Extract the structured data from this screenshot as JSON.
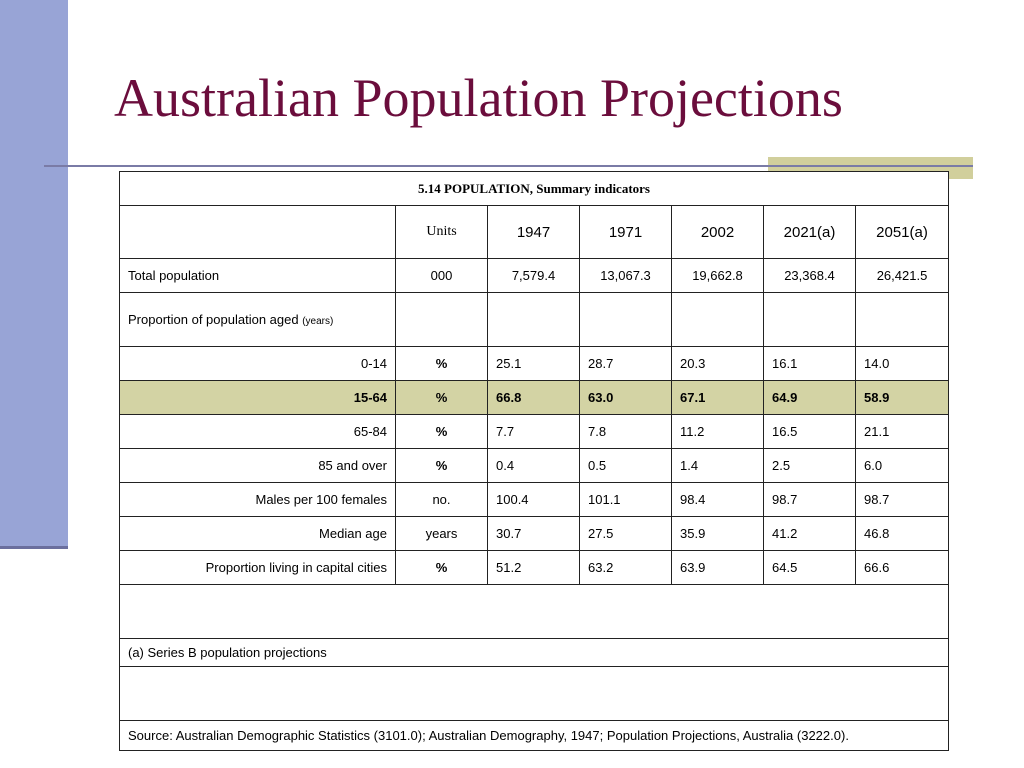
{
  "slide": {
    "title": "Australian Population Projections"
  },
  "table": {
    "caption": "5.14 POPULATION, Summary indicators",
    "header": {
      "units": "Units",
      "years": [
        "1947",
        "1971",
        "2002",
        "2021(a)",
        "2051(a)"
      ]
    },
    "total_row": {
      "label": "Total population",
      "unit": "000",
      "values": [
        "7,579.4",
        "13,067.3",
        "19,662.8",
        "23,368.4",
        "26,421.5"
      ]
    },
    "proportion_heading": {
      "label": "Proportion of population aged",
      "sub": "(years)"
    },
    "rows": [
      {
        "label": "0-14",
        "unit": "%",
        "values": [
          "25.1",
          "28.7",
          "20.3",
          "16.1",
          "14.0"
        ]
      },
      {
        "label": "15-64",
        "unit": "%",
        "values": [
          "66.8",
          "63.0",
          "67.1",
          "64.9",
          "58.9"
        ]
      },
      {
        "label": "65-84",
        "unit": "%",
        "values": [
          "7.7",
          "7.8",
          "11.2",
          "16.5",
          "21.1"
        ]
      },
      {
        "label": "85 and over",
        "unit": "%",
        "values": [
          "0.4",
          "0.5",
          "1.4",
          "2.5",
          "6.0"
        ]
      },
      {
        "label": "Males per 100 females",
        "unit": "no.",
        "values": [
          "100.4",
          "101.1",
          "98.4",
          "98.7",
          "98.7"
        ]
      },
      {
        "label": "Median age",
        "unit": "years",
        "values": [
          "30.7",
          "27.5",
          "35.9",
          "41.2",
          "46.8"
        ]
      },
      {
        "label": "Proportion living in capital cities",
        "unit": "%",
        "values": [
          "51.2",
          "63.2",
          "63.9",
          "64.5",
          "66.6"
        ]
      }
    ],
    "note": "(a) Series B population projections",
    "source": "Source: Australian Demographic Statistics (3101.0); Australian Demography, 1947; Population Projections, Australia (3222.0)."
  },
  "colors": {
    "title": "#6b0d3c",
    "left_bar": "#98a4d6",
    "accent": "#d1cf9c",
    "highlight_row": "#d3d3a4"
  }
}
